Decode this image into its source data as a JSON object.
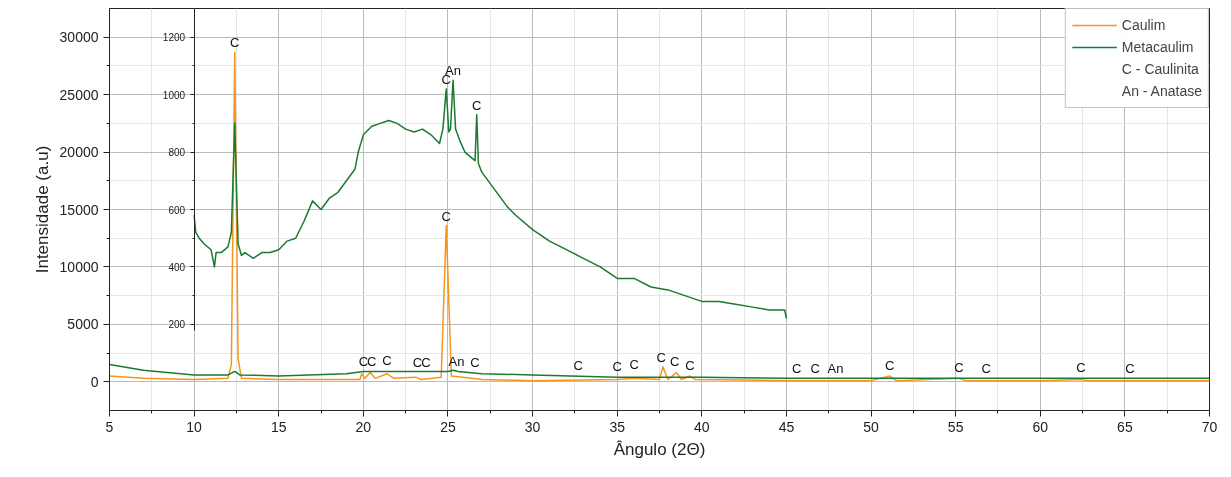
{
  "chart_data": {
    "type": "line",
    "xlabel": "Ângulo (2Θ)",
    "ylabel": "Intensidade (a.u)",
    "xlim": [
      5,
      70
    ],
    "ylim": [
      -2500,
      32500
    ],
    "y2lim": [
      -100,
      1300
    ],
    "xticks": [
      5,
      10,
      15,
      20,
      25,
      30,
      35,
      40,
      45,
      50,
      55,
      60,
      65,
      70
    ],
    "yticks": [
      0,
      5000,
      10000,
      15000,
      20000,
      25000,
      30000
    ],
    "y2ticks": [
      200,
      400,
      600,
      800,
      1000,
      1200
    ],
    "grid": true,
    "legend": "top right",
    "series": [
      {
        "name": "Caulim",
        "color": "#f7941d",
        "x": [
          5,
          7,
          10,
          12,
          12.2,
          12.4,
          12.6,
          12.8,
          15,
          19.8,
          19.9,
          20.1,
          20.4,
          20.7,
          21.4,
          21.8,
          23.1,
          23.4,
          24.6,
          24.9,
          25.2,
          26.4,
          27,
          30,
          35,
          36,
          37.5,
          37.7,
          38,
          38.5,
          38.8,
          39.3,
          39.6,
          45,
          50,
          51.1,
          51.5,
          55.2,
          55.6,
          60,
          62.4,
          62.8,
          70
        ],
        "values": [
          500,
          300,
          200,
          300,
          1500,
          28700,
          2000,
          300,
          200,
          200,
          700,
          300,
          800,
          300,
          700,
          300,
          400,
          200,
          400,
          13600,
          500,
          300,
          200,
          100,
          200,
          300,
          200,
          1300,
          200,
          800,
          200,
          500,
          200,
          100,
          100,
          500,
          100,
          300,
          100,
          100,
          200,
          100,
          100
        ]
      },
      {
        "name": "Metacaulim",
        "color": "#1a7a32",
        "x": [
          5,
          7,
          10,
          12,
          12.4,
          12.7,
          15,
          19,
          20,
          23,
          25,
          25.3,
          25.6,
          27,
          30,
          35,
          40,
          45,
          50,
          55,
          60,
          65,
          70
        ],
        "values": [
          1500,
          1000,
          600,
          600,
          900,
          600,
          500,
          700,
          900,
          900,
          900,
          1000,
          900,
          700,
          600,
          400,
          400,
          300,
          300,
          300,
          300,
          300,
          300
        ]
      },
      {
        "color": "#1a7a32",
        "axis": "y2",
        "x": [
          10,
          10.1,
          10.3,
          10.6,
          11,
          11.2,
          11.3,
          11.6,
          12,
          12.2,
          12.4,
          12.6,
          12.8,
          13,
          13.5,
          14,
          14.5,
          15,
          15.5,
          16,
          16.5,
          17,
          17.5,
          18,
          18.5,
          19,
          19.5,
          19.7,
          20,
          20.5,
          21,
          21.5,
          22,
          22.5,
          23,
          23.5,
          24,
          24.5,
          24.7,
          24.9,
          25.05,
          25.15,
          25.3,
          25.45,
          25.7,
          26,
          26.4,
          26.6,
          26.7,
          26.8,
          27,
          27.5,
          28,
          28.5,
          29,
          30,
          31,
          32,
          33,
          34,
          35,
          36,
          37,
          38,
          39,
          40,
          41,
          42,
          43,
          44,
          44.9,
          45
        ],
        "values": [
          580,
          520,
          500,
          480,
          460,
          400,
          450,
          450,
          470,
          520,
          900,
          480,
          440,
          450,
          430,
          450,
          450,
          460,
          490,
          500,
          560,
          630,
          600,
          640,
          660,
          700,
          740,
          800,
          860,
          890,
          900,
          910,
          900,
          880,
          870,
          880,
          860,
          830,
          880,
          1020,
          870,
          880,
          1050,
          880,
          840,
          800,
          780,
          770,
          930,
          760,
          730,
          690,
          650,
          610,
          580,
          530,
          490,
          460,
          430,
          400,
          360,
          360,
          330,
          320,
          300,
          280,
          280,
          270,
          260,
          250,
          250,
          220
        ]
      }
    ],
    "annotations": [
      "C - Caulinita",
      "An - Anatase",
      {
        "text": "C",
        "x": 12.4,
        "y": 28700
      },
      {
        "text": "C",
        "x": 24.9,
        "y": 13600
      },
      {
        "text": "C",
        "x": 24.9,
        "y": 25500
      },
      {
        "text": "An",
        "x": 25.3,
        "y": 26250
      },
      {
        "text": "C",
        "x": 26.7,
        "y": 23250
      },
      {
        "text": "C",
        "x": 20.0,
        "y": 900
      },
      {
        "text": "C",
        "x": 20.5,
        "y": 950
      },
      {
        "text": "C",
        "x": 21.4,
        "y": 1000
      },
      {
        "text": "C",
        "x": 23.2,
        "y": 850
      },
      {
        "text": "C",
        "x": 23.7,
        "y": 850
      },
      {
        "text": "An",
        "x": 25.5,
        "y": 900
      },
      {
        "text": "C",
        "x": 26.6,
        "y": 850
      },
      {
        "text": "C",
        "x": 32.7,
        "y": 550
      },
      {
        "text": "C",
        "x": 35.0,
        "y": 500
      },
      {
        "text": "C",
        "x": 36.0,
        "y": 700
      },
      {
        "text": "C",
        "x": 37.6,
        "y": 1300
      },
      {
        "text": "C",
        "x": 38.4,
        "y": 900
      },
      {
        "text": "C",
        "x": 39.3,
        "y": 600
      },
      {
        "text": "C",
        "x": 45.6,
        "y": 350
      },
      {
        "text": "C",
        "x": 46.7,
        "y": 300
      },
      {
        "text": "An",
        "x": 47.9,
        "y": 300
      },
      {
        "text": "C",
        "x": 51.1,
        "y": 600
      },
      {
        "text": "C",
        "x": 55.2,
        "y": 450
      },
      {
        "text": "C",
        "x": 56.8,
        "y": 350
      },
      {
        "text": "C",
        "x": 62.4,
        "y": 400
      },
      {
        "text": "C",
        "x": 65.3,
        "y": 300
      }
    ]
  }
}
